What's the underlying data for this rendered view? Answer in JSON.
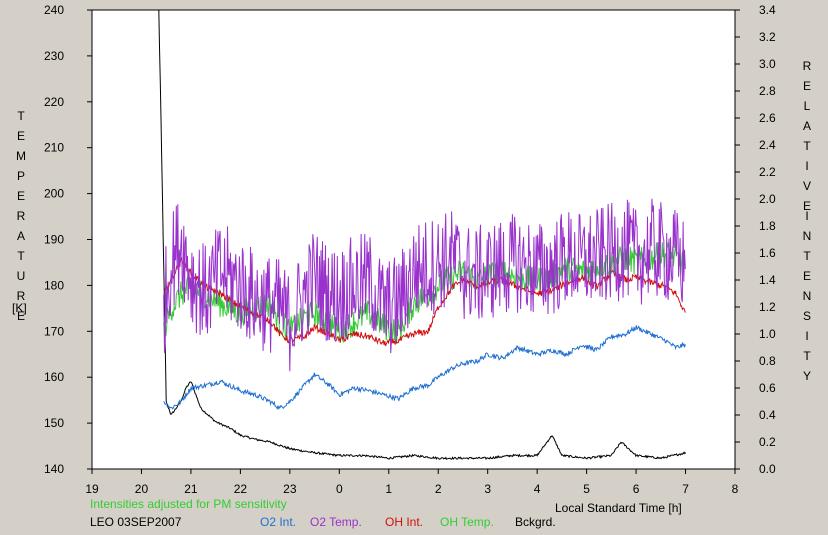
{
  "chart_data": {
    "type": "line",
    "left_axis": {
      "label_chars": [
        "T",
        "E",
        "M",
        "P",
        "E",
        "R",
        "A",
        "T",
        "U",
        "R",
        "E"
      ],
      "unit": "[K]",
      "ylim": [
        140,
        240
      ],
      "ticks": [
        "240",
        "230",
        "220",
        "210",
        "200",
        "190",
        "180",
        "170",
        "160",
        "150",
        "140"
      ]
    },
    "right_axis": {
      "label_word1": [
        "R",
        "E",
        "L",
        "A",
        "T",
        "I",
        "V",
        "E"
      ],
      "label_word2": [
        "I",
        "N",
        "T",
        "E",
        "N",
        "S",
        "I",
        "T",
        "Y"
      ],
      "ylim": [
        0.0,
        3.4
      ],
      "ticks": [
        "3.4",
        "3.2",
        "3.0",
        "2.8",
        "2.6",
        "2.4",
        "2.2",
        "2.0",
        "1.8",
        "1.6",
        "1.4",
        "1.2",
        "1.0",
        "0.8",
        "0.6",
        "0.4",
        "0.2",
        "0.0"
      ]
    },
    "x_axis": {
      "label": "Local Standard Time [h]",
      "ticks": [
        "19",
        "20",
        "21",
        "22",
        "23",
        "0",
        "1",
        "2",
        "3",
        "4",
        "5",
        "6",
        "7",
        "8"
      ]
    },
    "note": "Intensities adjusted for PM sensitivity",
    "station": "LEO 03SEP2007",
    "colors": {
      "o2_int": "#1e6fd0",
      "o2_temp": "#9932cc",
      "oh_int": "#d01010",
      "oh_temp": "#33cc33",
      "bckgrd": "#000000"
    },
    "series": [
      {
        "name": "O2 Int.",
        "axis": "right",
        "color_key": "o2_int",
        "x": [
          20.45,
          20.6,
          20.8,
          21.0,
          21.3,
          21.6,
          22.0,
          22.3,
          22.6,
          22.8,
          23.0,
          23.3,
          23.5,
          23.8,
          24.0,
          24.3,
          24.6,
          24.9,
          25.2,
          25.5,
          25.8,
          26.0,
          26.3,
          26.5,
          26.8,
          27.0,
          27.3,
          27.6,
          28.0,
          28.3,
          28.6,
          28.9,
          29.2,
          29.5,
          29.8,
          30.0,
          30.3,
          30.6,
          30.8,
          31.0
        ],
        "y": [
          0.5,
          0.45,
          0.5,
          0.6,
          0.62,
          0.65,
          0.58,
          0.55,
          0.5,
          0.45,
          0.5,
          0.62,
          0.7,
          0.62,
          0.55,
          0.6,
          0.58,
          0.55,
          0.52,
          0.6,
          0.62,
          0.68,
          0.75,
          0.78,
          0.8,
          0.85,
          0.82,
          0.9,
          0.85,
          0.88,
          0.85,
          0.92,
          0.88,
          0.98,
          1.0,
          1.05,
          1.0,
          0.95,
          0.9,
          0.92
        ]
      },
      {
        "name": "O2 Temp.",
        "axis": "left",
        "color_key": "o2_temp",
        "x": [
          20.45,
          20.6,
          20.8,
          21.0,
          21.3,
          21.6,
          22.0,
          22.3,
          22.6,
          22.8,
          23.0,
          23.3,
          23.5,
          23.8,
          24.0,
          24.3,
          24.6,
          24.9,
          25.2,
          25.5,
          25.8,
          26.0,
          26.3,
          26.5,
          26.8,
          27.0,
          27.3,
          27.6,
          28.0,
          28.3,
          28.6,
          28.9,
          29.2,
          29.5,
          29.8,
          30.0,
          30.3,
          30.6,
          30.8,
          31.0
        ],
        "y": [
          175,
          185,
          190,
          182,
          178,
          183,
          180,
          177,
          176,
          175,
          172,
          178,
          182,
          178,
          178,
          180,
          181,
          175,
          176,
          183,
          184,
          185,
          186,
          183,
          182,
          183,
          184,
          185,
          183,
          184,
          186,
          185,
          186,
          187,
          188,
          186,
          188,
          187,
          186,
          184
        ]
      },
      {
        "name": "OH Int.",
        "axis": "right",
        "color_key": "oh_int",
        "x": [
          20.45,
          20.6,
          20.8,
          21.0,
          21.3,
          21.6,
          22.0,
          22.3,
          22.6,
          22.8,
          23.0,
          23.3,
          23.5,
          23.8,
          24.0,
          24.3,
          24.6,
          24.9,
          25.2,
          25.5,
          25.8,
          26.0,
          26.3,
          26.5,
          26.8,
          27.0,
          27.3,
          27.6,
          28.0,
          28.3,
          28.6,
          28.9,
          29.2,
          29.5,
          29.8,
          30.0,
          30.3,
          30.6,
          30.8,
          31.0
        ],
        "y": [
          1.3,
          1.4,
          1.55,
          1.45,
          1.35,
          1.3,
          1.2,
          1.15,
          1.1,
          1.0,
          0.95,
          0.98,
          1.05,
          1.0,
          0.95,
          1.0,
          0.98,
          0.93,
          0.95,
          1.0,
          1.02,
          1.2,
          1.35,
          1.4,
          1.35,
          1.38,
          1.4,
          1.35,
          1.3,
          1.32,
          1.38,
          1.42,
          1.35,
          1.45,
          1.4,
          1.42,
          1.38,
          1.35,
          1.3,
          1.15
        ]
      },
      {
        "name": "OH Temp.",
        "axis": "left",
        "color_key": "oh_temp",
        "x": [
          20.45,
          20.6,
          20.8,
          21.0,
          21.3,
          21.6,
          22.0,
          22.3,
          22.6,
          22.8,
          23.0,
          23.3,
          23.5,
          23.8,
          24.0,
          24.3,
          24.6,
          24.9,
          25.2,
          25.5,
          25.8,
          26.0,
          26.3,
          26.5,
          26.8,
          27.0,
          27.3,
          27.6,
          28.0,
          28.3,
          28.6,
          28.9,
          29.2,
          29.5,
          29.8,
          30.0,
          30.3,
          30.6,
          30.8,
          31.0
        ],
        "y": [
          170,
          175,
          178,
          180,
          178,
          176,
          174,
          175,
          176,
          172,
          170,
          173,
          174,
          172,
          170,
          172,
          174,
          171,
          170,
          176,
          178,
          180,
          182,
          183,
          181,
          182,
          183,
          182,
          181,
          182,
          184,
          183,
          184,
          185,
          186,
          185,
          186,
          187,
          186,
          184
        ]
      },
      {
        "name": "Bckgrd.",
        "axis": "right",
        "color_key": "bckgrd",
        "x": [
          20.35,
          20.4,
          20.45,
          20.5,
          20.6,
          20.7,
          20.8,
          20.9,
          21.0,
          21.2,
          21.5,
          21.8,
          22.0,
          22.3,
          22.6,
          23.0,
          23.5,
          24.0,
          24.5,
          25.0,
          25.5,
          26.0,
          26.5,
          27.0,
          27.5,
          28.0,
          28.3,
          28.5,
          29.0,
          29.5,
          29.7,
          30.0,
          30.5,
          31.0
        ],
        "y": [
          3.4,
          2.5,
          1.5,
          0.5,
          0.4,
          0.45,
          0.5,
          0.6,
          0.65,
          0.45,
          0.35,
          0.3,
          0.25,
          0.22,
          0.2,
          0.15,
          0.12,
          0.1,
          0.1,
          0.08,
          0.1,
          0.08,
          0.08,
          0.08,
          0.1,
          0.1,
          0.25,
          0.1,
          0.08,
          0.1,
          0.2,
          0.1,
          0.08,
          0.12
        ]
      }
    ]
  }
}
